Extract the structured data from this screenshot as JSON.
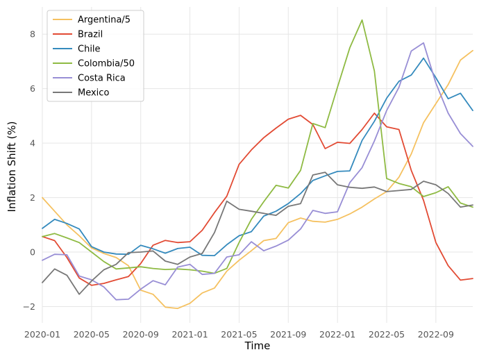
{
  "chart_data": {
    "type": "line",
    "xlabel": "Time",
    "ylabel": "Inflation Shift (%)",
    "x": [
      "2020-01",
      "2020-02",
      "2020-03",
      "2020-04",
      "2020-05",
      "2020-06",
      "2020-07",
      "2020-08",
      "2020-09",
      "2020-10",
      "2020-11",
      "2020-12",
      "2021-01",
      "2021-02",
      "2021-03",
      "2021-04",
      "2021-05",
      "2021-06",
      "2021-07",
      "2021-08",
      "2021-09",
      "2021-10",
      "2021-11",
      "2021-12",
      "2022-01",
      "2022-02",
      "2022-03",
      "2022-04",
      "2022-05",
      "2022-06",
      "2022-07",
      "2022-08",
      "2022-09",
      "2022-10",
      "2022-11",
      "2022-12"
    ],
    "xticks": [
      "2020-01",
      "2020-05",
      "2020-09",
      "2021-01",
      "2021-05",
      "2021-09",
      "2022-01",
      "2022-05",
      "2022-09"
    ],
    "xlim": [
      "2020-01",
      "2022-12"
    ],
    "ylim": [
      -2.6,
      9.0
    ],
    "yticks": [
      -2,
      0,
      2,
      4,
      6,
      8
    ],
    "yticklabels": [
      "−2",
      "0",
      "2",
      "4",
      "6",
      "8"
    ],
    "grid": true,
    "legend_position": "top-left",
    "series": [
      {
        "name": "Argentina/5",
        "color": "#f5c160",
        "values": [
          2.0,
          1.5,
          1.0,
          0.6,
          0.15,
          -0.05,
          -0.2,
          -0.5,
          -1.4,
          -1.55,
          -2.02,
          -2.07,
          -1.88,
          -1.5,
          -1.32,
          -0.7,
          -0.3,
          0.05,
          0.42,
          0.5,
          1.08,
          1.25,
          1.13,
          1.1,
          1.2,
          1.4,
          1.65,
          1.95,
          2.22,
          2.75,
          3.6,
          4.75,
          5.45,
          6.15,
          7.05,
          7.4
        ]
      },
      {
        "name": "Brazil",
        "color": "#e24a33",
        "values": [
          0.57,
          0.42,
          -0.2,
          -0.95,
          -1.22,
          -1.15,
          -1.02,
          -0.9,
          -0.42,
          0.25,
          0.43,
          0.35,
          0.38,
          0.8,
          1.45,
          2.05,
          3.22,
          3.75,
          4.2,
          4.55,
          4.88,
          5.02,
          4.68,
          3.8,
          4.03,
          3.99,
          4.5,
          5.1,
          4.6,
          4.5,
          3.0,
          1.9,
          0.35,
          -0.5,
          -1.03,
          -0.97
        ]
      },
      {
        "name": "Chile",
        "color": "#348abd",
        "values": [
          0.87,
          1.2,
          1.05,
          0.85,
          0.2,
          0.0,
          -0.07,
          -0.08,
          0.25,
          0.12,
          -0.04,
          0.13,
          0.18,
          -0.12,
          -0.13,
          0.27,
          0.6,
          0.75,
          1.32,
          1.5,
          1.78,
          2.15,
          2.63,
          2.8,
          2.96,
          2.98,
          4.1,
          4.8,
          5.65,
          6.27,
          6.5,
          7.12,
          6.4,
          5.63,
          5.83,
          5.2
        ]
      },
      {
        "name": "Colombia/50",
        "color": "#8eba42",
        "values": [
          0.57,
          0.68,
          0.52,
          0.35,
          0.0,
          -0.35,
          -0.62,
          -0.58,
          -0.54,
          -0.6,
          -0.64,
          -0.62,
          -0.65,
          -0.7,
          -0.78,
          -0.6,
          0.35,
          1.2,
          1.85,
          2.45,
          2.35,
          3.0,
          4.72,
          4.57,
          6.05,
          7.5,
          8.52,
          6.65,
          2.7,
          2.52,
          2.4,
          2.04,
          2.18,
          2.4,
          1.8,
          1.65
        ]
      },
      {
        "name": "Costa Rica",
        "color": "#988ed5",
        "values": [
          -0.3,
          -0.08,
          -0.1,
          -0.88,
          -1.02,
          -1.28,
          -1.75,
          -1.73,
          -1.36,
          -1.05,
          -1.2,
          -0.55,
          -0.45,
          -0.82,
          -0.78,
          -0.18,
          -0.1,
          0.38,
          0.05,
          0.22,
          0.44,
          0.85,
          1.53,
          1.42,
          1.48,
          2.55,
          3.1,
          4.08,
          5.2,
          6.05,
          7.38,
          7.68,
          6.2,
          5.1,
          4.35,
          3.88
        ]
      },
      {
        "name": "Mexico",
        "color": "#777777",
        "values": [
          -1.12,
          -0.62,
          -0.85,
          -1.55,
          -1.06,
          -0.65,
          -0.45,
          -0.02,
          0.0,
          0.04,
          -0.33,
          -0.45,
          -0.18,
          -0.05,
          0.72,
          1.87,
          1.57,
          1.5,
          1.42,
          1.35,
          1.68,
          1.78,
          2.83,
          2.93,
          2.47,
          2.38,
          2.34,
          2.39,
          2.22,
          2.26,
          2.3,
          2.6,
          2.47,
          2.15,
          1.65,
          1.73
        ]
      }
    ]
  }
}
